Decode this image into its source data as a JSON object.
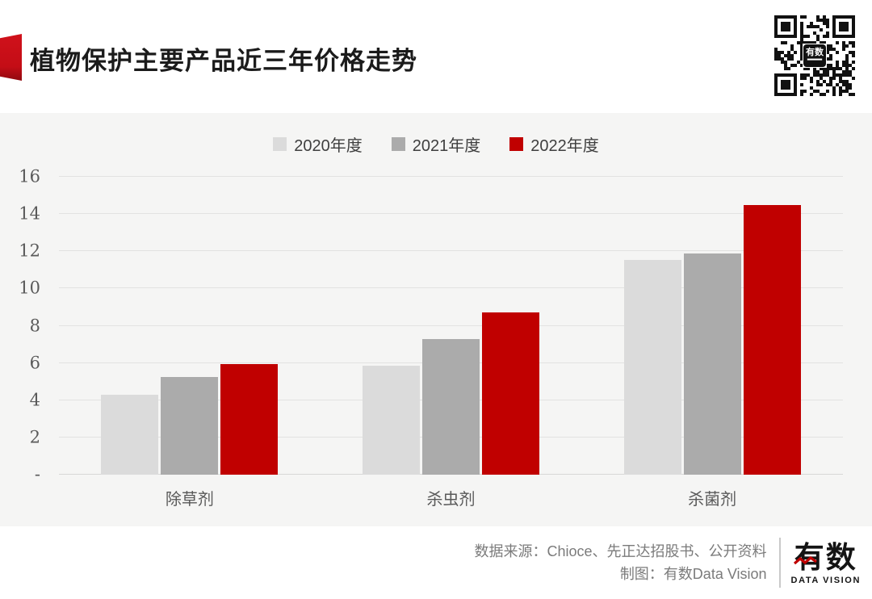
{
  "header": {
    "title": "植物保护主要产品近三年价格走势",
    "qr_center_label": "有数"
  },
  "chart_data": {
    "type": "bar",
    "title": "植物保护主要产品近三年价格走势",
    "categories": [
      "除草剂",
      "杀虫剂",
      "杀菌剂"
    ],
    "series": [
      {
        "name": "2020年度",
        "color": "#dbdbdb",
        "values": [
          4.3,
          5.85,
          11.55
        ]
      },
      {
        "name": "2021年度",
        "color": "#ababab",
        "values": [
          5.25,
          7.3,
          11.9
        ]
      },
      {
        "name": "2022年度",
        "color": "#c00000",
        "values": [
          5.95,
          8.7,
          14.5
        ]
      }
    ],
    "xlabel": "",
    "ylabel": "",
    "ylim": [
      0,
      16
    ],
    "ytick_step": 2,
    "ytick_labels": [
      "-",
      "2",
      "4",
      "6",
      "8",
      "10",
      "12",
      "14",
      "16"
    ],
    "grid": true,
    "legend_position": "top"
  },
  "colors": {
    "accent_red": "#c00000",
    "ribbon_red": "#c40d16",
    "panel_bg": "#f5f5f4",
    "gridline": "#e2e2e1"
  },
  "footer": {
    "source_line": "数据来源：Chioce、先正达招股书、公开资料",
    "credit_line": "制图：有数Data Vision",
    "logo_text": "有数",
    "logo_subtext": "DATA VISION"
  }
}
